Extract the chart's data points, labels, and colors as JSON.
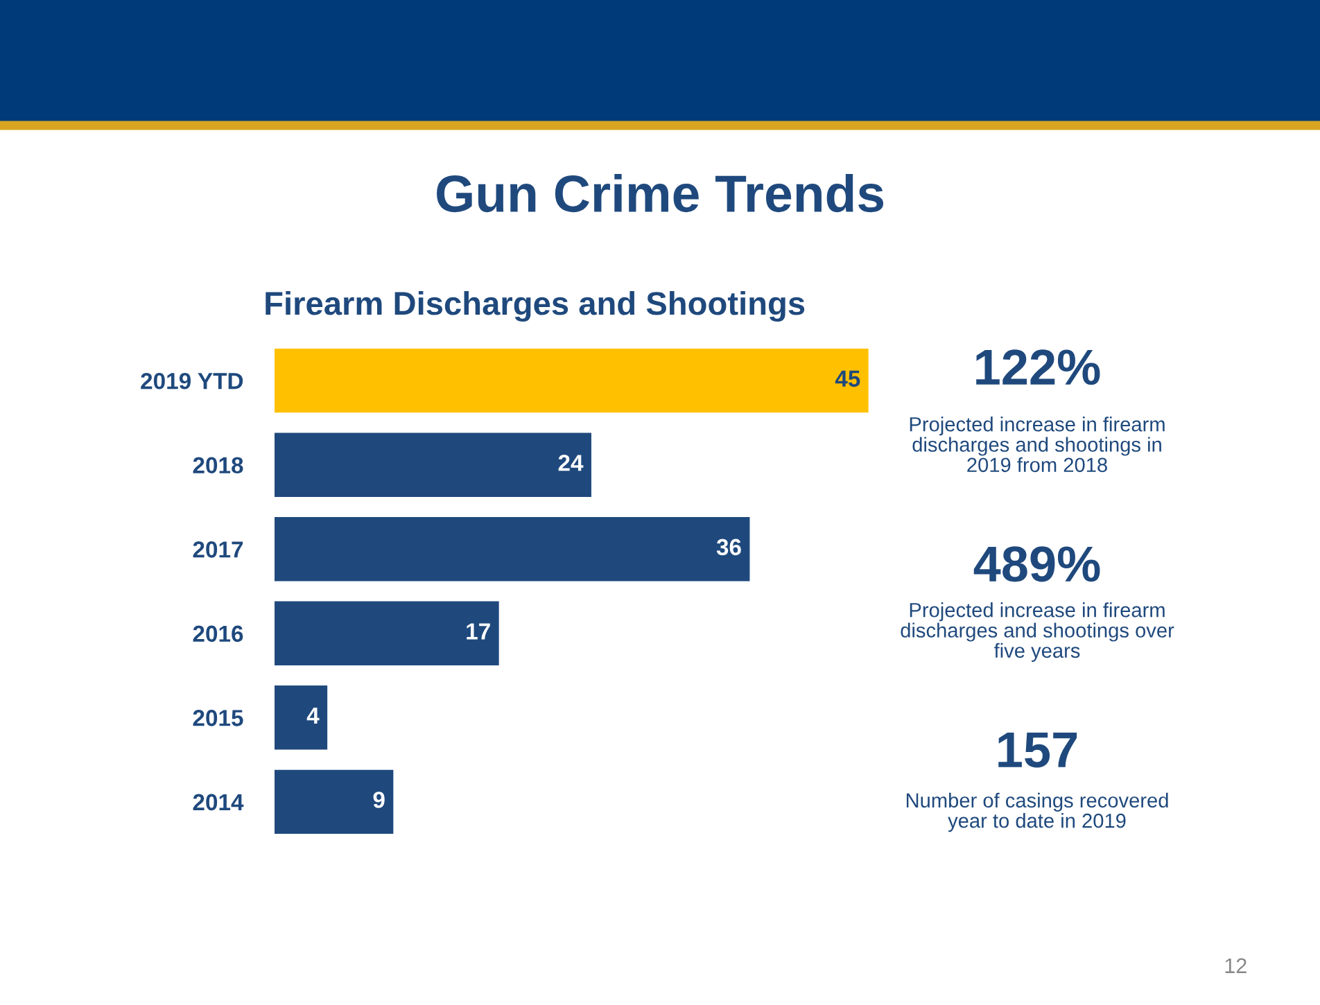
{
  "chart_data": {
    "type": "bar",
    "orientation": "horizontal",
    "title": "Gun Crime Trends",
    "subtitle": "Firearm Discharges and Shootings",
    "categories": [
      "2019 YTD",
      "2018",
      "2017",
      "2016",
      "2015",
      "2014"
    ],
    "values": [
      45,
      24,
      36,
      17,
      4,
      9
    ],
    "colors": [
      "#ffc000",
      "#1f497d",
      "#1f497d",
      "#1f497d",
      "#1f497d",
      "#1f497d"
    ],
    "data_labels": true,
    "grid": false,
    "legend": false,
    "tick_labels": "y",
    "annotations": [
      "122%",
      "Projected increase in firearm\ndischarges and shootings in\n2019 from 2018",
      "489%",
      "Projected increase in firearm\ndischarges and shootings over\nfive years",
      "157",
      "Number of casings recovered\nyear to date in 2019",
      "12"
    ]
  }
}
